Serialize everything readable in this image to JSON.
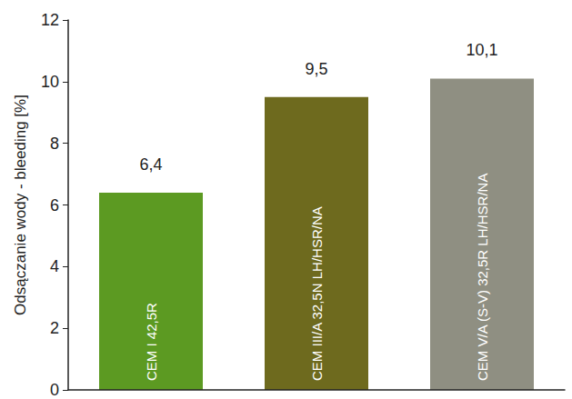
{
  "chart_data": {
    "type": "bar",
    "ylabel": "Odsączanie wody - bleeding [%]",
    "categories": [
      "CEM I 42,5R",
      "CEM III/A 32,5N LH/HSR/NA",
      "CEM V/A (S-V) 32,5R LH/HSR/NA"
    ],
    "values": [
      6.4,
      9.5,
      10.1
    ],
    "value_labels": [
      "6,4",
      "9,5",
      "10,1"
    ],
    "colors": [
      "#5c9a22",
      "#6e6a1e",
      "#8f8f82"
    ],
    "ylim": [
      0,
      12
    ],
    "yticks": [
      0,
      2,
      4,
      6,
      8,
      10,
      12
    ],
    "grid": false,
    "data_labels": true
  }
}
